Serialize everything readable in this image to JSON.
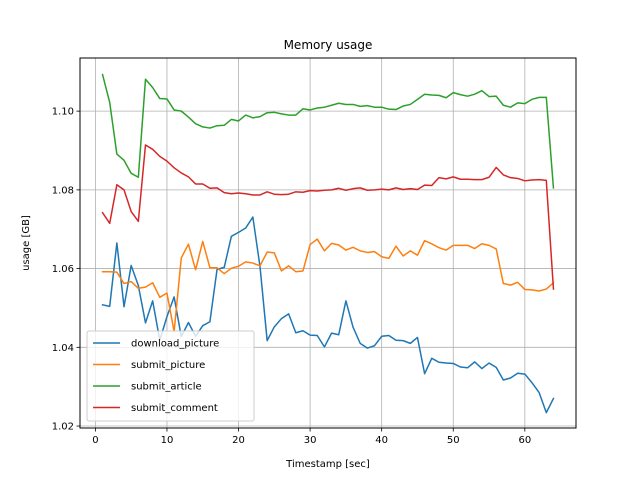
{
  "chart_data": {
    "type": "line",
    "title": "Memory usage",
    "xlabel": "Timestamp [sec]",
    "ylabel": "usage [GB]",
    "xlim": [
      -2.15,
      67.15
    ],
    "ylim": [
      1.0195,
      1.1135
    ],
    "xticks": [
      0,
      10,
      20,
      30,
      40,
      50,
      60
    ],
    "xtick_labels": [
      "0",
      "10",
      "20",
      "30",
      "40",
      "50",
      "60"
    ],
    "yticks": [
      1.02,
      1.04,
      1.06,
      1.08,
      1.1
    ],
    "ytick_labels": [
      "1.02",
      "1.04",
      "1.06",
      "1.08",
      "1.10"
    ],
    "grid": true,
    "legend_position": "bottom-left",
    "x": [
      1,
      2,
      3,
      4,
      5,
      6,
      7,
      8,
      9,
      10,
      11,
      12,
      13,
      14,
      15,
      16,
      17,
      18,
      19,
      20,
      21,
      22,
      23,
      24,
      25,
      26,
      27,
      28,
      29,
      30,
      31,
      32,
      33,
      34,
      35,
      36,
      37,
      38,
      39,
      40,
      41,
      42,
      43,
      44,
      45,
      46,
      47,
      48,
      49,
      50,
      51,
      52,
      53,
      54,
      55,
      56,
      57,
      58,
      59,
      60,
      61,
      62,
      63,
      64
    ],
    "series": [
      {
        "name": "download_picture",
        "color": "#1f77b4",
        "values": [
          1.0508,
          1.0504,
          1.0665,
          1.0503,
          1.0608,
          1.0557,
          1.0462,
          1.0518,
          1.0418,
          1.0478,
          1.0528,
          1.0427,
          1.0463,
          1.0428,
          1.0455,
          1.0465,
          1.0598,
          1.0603,
          1.0682,
          1.0692,
          1.0703,
          1.0731,
          1.0605,
          1.0417,
          1.0452,
          1.0473,
          1.0485,
          1.0437,
          1.0442,
          1.0431,
          1.043,
          1.0401,
          1.0436,
          1.0432,
          1.0518,
          1.0451,
          1.041,
          1.0398,
          1.0404,
          1.0428,
          1.043,
          1.0418,
          1.0417,
          1.041,
          1.0425,
          1.0333,
          1.0372,
          1.0362,
          1.036,
          1.0359,
          1.035,
          1.0348,
          1.0363,
          1.0346,
          1.036,
          1.0349,
          1.0317,
          1.0322,
          1.0334,
          1.0332,
          1.031,
          1.0285,
          1.0234,
          1.027
        ]
      },
      {
        "name": "submit_picture",
        "color": "#ff7f0e",
        "values": [
          1.0592,
          1.0592,
          1.0591,
          1.0562,
          1.0567,
          1.055,
          1.0553,
          1.0564,
          1.0527,
          1.0538,
          1.044,
          1.0627,
          1.0662,
          1.0597,
          1.0669,
          1.0602,
          1.0602,
          1.0587,
          1.0601,
          1.0606,
          1.0617,
          1.0614,
          1.0607,
          1.0642,
          1.064,
          1.0594,
          1.0607,
          1.0592,
          1.0594,
          1.0661,
          1.0675,
          1.0645,
          1.0664,
          1.066,
          1.0647,
          1.0654,
          1.0645,
          1.0641,
          1.0643,
          1.063,
          1.0626,
          1.0657,
          1.0632,
          1.0645,
          1.0634,
          1.0671,
          1.0663,
          1.0653,
          1.0647,
          1.0659,
          1.0659,
          1.0659,
          1.0651,
          1.0663,
          1.0659,
          1.065,
          1.0562,
          1.0558,
          1.0565,
          1.0547,
          1.0546,
          1.0543,
          1.0548,
          1.0564
        ]
      },
      {
        "name": "submit_article",
        "color": "#2ca02c",
        "values": [
          1.1093,
          1.1022,
          1.0891,
          1.0875,
          1.0842,
          1.0832,
          1.1081,
          1.106,
          1.1032,
          1.1031,
          1.1003,
          1.1,
          1.0985,
          1.0968,
          1.096,
          1.0957,
          1.0963,
          1.0964,
          1.0979,
          1.0975,
          1.099,
          1.0983,
          1.0986,
          1.0996,
          1.0997,
          1.0993,
          1.099,
          1.099,
          1.1006,
          1.1003,
          1.1008,
          1.101,
          1.1015,
          1.102,
          1.1017,
          1.1017,
          1.1012,
          1.1014,
          1.101,
          1.101,
          1.1005,
          1.1004,
          1.1013,
          1.1017,
          1.103,
          1.1043,
          1.1041,
          1.104,
          1.1034,
          1.1047,
          1.1042,
          1.1038,
          1.1043,
          1.1052,
          1.1037,
          1.1038,
          1.1015,
          1.101,
          1.1021,
          1.1019,
          1.103,
          1.1035,
          1.1035,
          1.0805
        ]
      },
      {
        "name": "submit_comment",
        "color": "#d62728",
        "values": [
          1.0742,
          1.0715,
          1.0813,
          1.08,
          1.0745,
          1.072,
          1.0914,
          1.0903,
          1.0885,
          1.0873,
          1.0856,
          1.0843,
          1.0833,
          1.0815,
          1.0815,
          1.0804,
          1.0805,
          1.0793,
          1.079,
          1.0792,
          1.079,
          1.0787,
          1.0787,
          1.0795,
          1.0789,
          1.0788,
          1.0789,
          1.0795,
          1.0794,
          1.0798,
          1.0797,
          1.0799,
          1.08,
          1.0804,
          1.0799,
          1.0803,
          1.0805,
          1.0799,
          1.08,
          1.0802,
          1.08,
          1.0805,
          1.0801,
          1.0803,
          1.0801,
          1.0812,
          1.0811,
          1.0831,
          1.0828,
          1.0833,
          1.0827,
          1.0827,
          1.0826,
          1.0826,
          1.0832,
          1.0857,
          1.0838,
          1.0831,
          1.0829,
          1.0823,
          1.0825,
          1.0826,
          1.0824,
          1.0548
        ]
      }
    ]
  }
}
